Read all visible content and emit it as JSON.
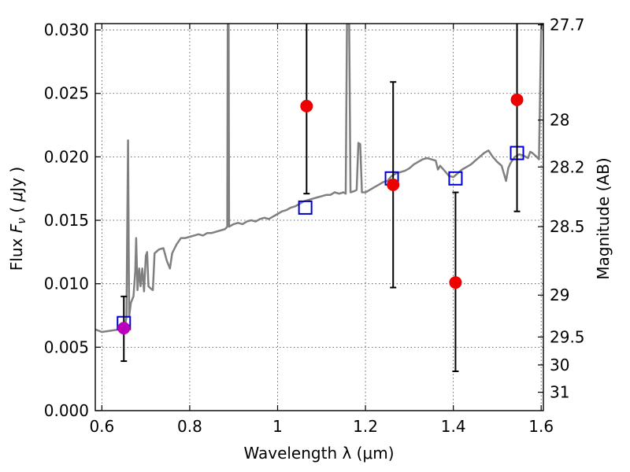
{
  "chart_data": {
    "type": "scatter",
    "title": "",
    "xlabel": "Wavelength  λ (μm)",
    "ylabel_left": {
      "prefix": "Flux  ",
      "symbol": "F",
      "subscript": "ν",
      "unit_open": "  ( ",
      "mu": "μ",
      "unit_close": "Jy )"
    },
    "ylabel_right": "Magnitude (AB)",
    "xlim": [
      0.585,
      1.605
    ],
    "ylim": [
      0.0,
      0.0305
    ],
    "grid": true,
    "x_ticks": [
      {
        "value": 0.6,
        "label": "0.6"
      },
      {
        "value": 0.8,
        "label": "0.8"
      },
      {
        "value": 1.0,
        "label": "1"
      },
      {
        "value": 1.2,
        "label": "1.2"
      },
      {
        "value": 1.4,
        "label": "1.4"
      },
      {
        "value": 1.6,
        "label": "1.6"
      }
    ],
    "y_ticks_left": [
      {
        "value": 0.0,
        "label": "0.000"
      },
      {
        "value": 0.005,
        "label": "0.005"
      },
      {
        "value": 0.01,
        "label": "0.010"
      },
      {
        "value": 0.015,
        "label": "0.015"
      },
      {
        "value": 0.02,
        "label": "0.020"
      },
      {
        "value": 0.025,
        "label": "0.025"
      },
      {
        "value": 0.03,
        "label": "0.030"
      }
    ],
    "y_ticks_right": [
      {
        "flux": 0.0304,
        "label": "27.7"
      },
      {
        "flux": 0.0229,
        "label": "28"
      },
      {
        "flux": 0.0192,
        "label": "28.2"
      },
      {
        "flux": 0.0145,
        "label": "28.5"
      },
      {
        "flux": 0.0091,
        "label": "29"
      },
      {
        "flux": 0.0058,
        "label": "29.5"
      },
      {
        "flux": 0.0036,
        "label": "30"
      },
      {
        "flux": 0.00145,
        "label": "31"
      }
    ],
    "model_spectrum": {
      "color": "#808080",
      "points": [
        [
          0.585,
          0.0064
        ],
        [
          0.6,
          0.0062
        ],
        [
          0.62,
          0.0063
        ],
        [
          0.64,
          0.0064
        ],
        [
          0.652,
          0.0065
        ],
        [
          0.656,
          0.0074
        ],
        [
          0.6595,
          0.0213
        ],
        [
          0.662,
          0.0074
        ],
        [
          0.666,
          0.0085
        ],
        [
          0.672,
          0.009
        ],
        [
          0.676,
          0.011
        ],
        [
          0.678,
          0.0136
        ],
        [
          0.681,
          0.0095
        ],
        [
          0.685,
          0.0112
        ],
        [
          0.688,
          0.0098
        ],
        [
          0.692,
          0.0112
        ],
        [
          0.696,
          0.0094
        ],
        [
          0.7,
          0.0122
        ],
        [
          0.703,
          0.0125
        ],
        [
          0.706,
          0.0098
        ],
        [
          0.712,
          0.0096
        ],
        [
          0.716,
          0.0095
        ],
        [
          0.72,
          0.0124
        ],
        [
          0.73,
          0.0127
        ],
        [
          0.74,
          0.0128
        ],
        [
          0.748,
          0.0118
        ],
        [
          0.755,
          0.0112
        ],
        [
          0.76,
          0.0124
        ],
        [
          0.77,
          0.0131
        ],
        [
          0.78,
          0.0136
        ],
        [
          0.79,
          0.0136
        ],
        [
          0.8,
          0.0137
        ],
        [
          0.81,
          0.0138
        ],
        [
          0.82,
          0.0139
        ],
        [
          0.83,
          0.0138
        ],
        [
          0.84,
          0.014
        ],
        [
          0.85,
          0.014
        ],
        [
          0.86,
          0.0141
        ],
        [
          0.87,
          0.0142
        ],
        [
          0.88,
          0.0143
        ],
        [
          0.8855,
          0.0145
        ],
        [
          0.8865,
          0.0305
        ],
        [
          0.8885,
          0.0305
        ],
        [
          0.8895,
          0.0145
        ],
        [
          0.9,
          0.0147
        ],
        [
          0.91,
          0.0148
        ],
        [
          0.92,
          0.0147
        ],
        [
          0.93,
          0.0149
        ],
        [
          0.94,
          0.015
        ],
        [
          0.95,
          0.0149
        ],
        [
          0.96,
          0.0151
        ],
        [
          0.97,
          0.0152
        ],
        [
          0.98,
          0.0151
        ],
        [
          0.99,
          0.0153
        ],
        [
          1.0,
          0.0155
        ],
        [
          1.01,
          0.0157
        ],
        [
          1.02,
          0.0158
        ],
        [
          1.03,
          0.016
        ],
        [
          1.04,
          0.0161
        ],
        [
          1.05,
          0.0163
        ],
        [
          1.06,
          0.0165
        ],
        [
          1.07,
          0.0166
        ],
        [
          1.08,
          0.0167
        ],
        [
          1.09,
          0.0168
        ],
        [
          1.1,
          0.0169
        ],
        [
          1.11,
          0.017
        ],
        [
          1.12,
          0.017
        ],
        [
          1.13,
          0.0172
        ],
        [
          1.14,
          0.0171
        ],
        [
          1.15,
          0.0172
        ],
        [
          1.155,
          0.0171
        ],
        [
          1.158,
          0.0305
        ],
        [
          1.163,
          0.0305
        ],
        [
          1.166,
          0.0172
        ],
        [
          1.175,
          0.0173
        ],
        [
          1.18,
          0.0174
        ],
        [
          1.184,
          0.0211
        ],
        [
          1.188,
          0.021
        ],
        [
          1.192,
          0.0172
        ],
        [
          1.2,
          0.0172
        ],
        [
          1.21,
          0.0174
        ],
        [
          1.22,
          0.0176
        ],
        [
          1.23,
          0.0178
        ],
        [
          1.24,
          0.018
        ],
        [
          1.25,
          0.0181
        ],
        [
          1.26,
          0.0185
        ],
        [
          1.27,
          0.0187
        ],
        [
          1.28,
          0.0188
        ],
        [
          1.29,
          0.0189
        ],
        [
          1.3,
          0.0191
        ],
        [
          1.31,
          0.0194
        ],
        [
          1.32,
          0.0196
        ],
        [
          1.33,
          0.0198
        ],
        [
          1.34,
          0.0199
        ],
        [
          1.35,
          0.0198
        ],
        [
          1.36,
          0.0197
        ],
        [
          1.365,
          0.019
        ],
        [
          1.37,
          0.0193
        ],
        [
          1.38,
          0.0189
        ],
        [
          1.39,
          0.0185
        ],
        [
          1.4,
          0.0184
        ],
        [
          1.41,
          0.0187
        ],
        [
          1.42,
          0.019
        ],
        [
          1.43,
          0.0192
        ],
        [
          1.44,
          0.0194
        ],
        [
          1.45,
          0.0197
        ],
        [
          1.46,
          0.02
        ],
        [
          1.47,
          0.0203
        ],
        [
          1.48,
          0.0205
        ],
        [
          1.49,
          0.02
        ],
        [
          1.5,
          0.0196
        ],
        [
          1.51,
          0.0193
        ],
        [
          1.515,
          0.0187
        ],
        [
          1.52,
          0.0181
        ],
        [
          1.525,
          0.0191
        ],
        [
          1.53,
          0.0195
        ],
        [
          1.54,
          0.02
        ],
        [
          1.55,
          0.0202
        ],
        [
          1.56,
          0.0201
        ],
        [
          1.57,
          0.0199
        ],
        [
          1.575,
          0.0204
        ],
        [
          1.58,
          0.0203
        ],
        [
          1.59,
          0.02
        ],
        [
          1.595,
          0.0198
        ],
        [
          1.6,
          0.03
        ],
        [
          1.602,
          0.0305
        ]
      ]
    },
    "model_photometry": {
      "marker": "open-square",
      "color": "#0000cc",
      "points": [
        {
          "x": 0.65,
          "y": 0.0069
        },
        {
          "x": 1.063,
          "y": 0.016
        },
        {
          "x": 1.26,
          "y": 0.0183
        },
        {
          "x": 1.405,
          "y": 0.0183
        },
        {
          "x": 1.545,
          "y": 0.0203
        }
      ]
    },
    "observed_photometry": {
      "marker": "filled-circle",
      "points": [
        {
          "x": 0.65,
          "y": 0.0065,
          "yerr_low": 0.0039,
          "yerr_high": 0.009,
          "color": "#bb00bb"
        },
        {
          "x": 1.066,
          "y": 0.024,
          "yerr_low": 0.0171,
          "yerr_high": 0.0305,
          "color": "#ee0000"
        },
        {
          "x": 1.263,
          "y": 0.0178,
          "yerr_low": 0.0097,
          "yerr_high": 0.0259,
          "color": "#ee0000"
        },
        {
          "x": 1.405,
          "y": 0.0101,
          "yerr_low": 0.0031,
          "yerr_high": 0.0172,
          "color": "#ee0000"
        },
        {
          "x": 1.545,
          "y": 0.0245,
          "yerr_low": 0.0157,
          "yerr_high": 0.0305,
          "color": "#ee0000"
        }
      ]
    }
  }
}
